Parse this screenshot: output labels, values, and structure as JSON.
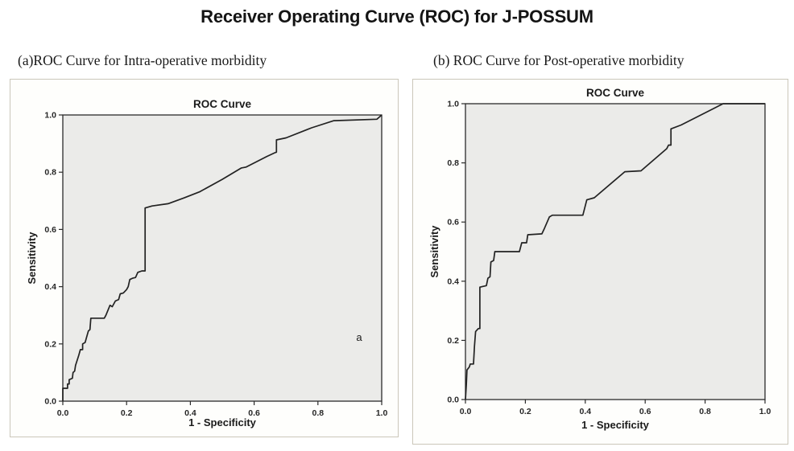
{
  "page": {
    "title": "Receiver Operating Curve (ROC) for J-POSSUM"
  },
  "panels": [
    {
      "subtitle": "(a)ROC Curve for Intra-operative morbidity"
    },
    {
      "subtitle": "(b) ROC Curve for Post-operative morbidity"
    }
  ],
  "colors": {
    "page_bg": "#ffffff",
    "panel_bg": "#fefefc",
    "panel_border": "#cbc7ba",
    "plot_bg": "#ebebe9",
    "frame": "#2b2b2b",
    "curve": "#222222",
    "text": "#1a1a1a"
  },
  "chart_data": [
    {
      "type": "line",
      "title": "ROC Curve",
      "xlabel": "1 - Specificity",
      "ylabel": "Sensitivity",
      "xlim": [
        0,
        1
      ],
      "ylim": [
        0,
        1
      ],
      "xtick_labels": [
        "0.0",
        "0.2",
        "0.4",
        "0.6",
        "0.8",
        "1.0"
      ],
      "ytick_labels": [
        "0.0",
        "0.2",
        "0.4",
        "0.6",
        "0.8",
        "1.0"
      ],
      "grid": false,
      "legend": null,
      "annotation": {
        "text": "a",
        "x": 0.92,
        "y": 0.21
      },
      "series": [
        {
          "name": "ROC curve for intra-operative morbidity",
          "points": [
            [
              0,
              0
            ],
            [
              0,
              0.045
            ],
            [
              0.015,
              0.045
            ],
            [
              0.015,
              0.06
            ],
            [
              0.02,
              0.06
            ],
            [
              0.02,
              0.075
            ],
            [
              0.03,
              0.08
            ],
            [
              0.032,
              0.1
            ],
            [
              0.037,
              0.105
            ],
            [
              0.04,
              0.125
            ],
            [
              0.05,
              0.16
            ],
            [
              0.055,
              0.18
            ],
            [
              0.062,
              0.18
            ],
            [
              0.062,
              0.2
            ],
            [
              0.07,
              0.205
            ],
            [
              0.075,
              0.225
            ],
            [
              0.08,
              0.245
            ],
            [
              0.085,
              0.25
            ],
            [
              0.088,
              0.29
            ],
            [
              0.13,
              0.29
            ],
            [
              0.135,
              0.3
            ],
            [
              0.148,
              0.335
            ],
            [
              0.155,
              0.33
            ],
            [
              0.165,
              0.35
            ],
            [
              0.175,
              0.355
            ],
            [
              0.18,
              0.375
            ],
            [
              0.19,
              0.378
            ],
            [
              0.2,
              0.39
            ],
            [
              0.205,
              0.4
            ],
            [
              0.21,
              0.425
            ],
            [
              0.22,
              0.43
            ],
            [
              0.228,
              0.432
            ],
            [
              0.235,
              0.45
            ],
            [
              0.248,
              0.455
            ],
            [
              0.258,
              0.455
            ],
            [
              0.258,
              0.675
            ],
            [
              0.28,
              0.682
            ],
            [
              0.33,
              0.69
            ],
            [
              0.38,
              0.71
            ],
            [
              0.43,
              0.732
            ],
            [
              0.5,
              0.775
            ],
            [
              0.56,
              0.815
            ],
            [
              0.575,
              0.818
            ],
            [
              0.64,
              0.855
            ],
            [
              0.665,
              0.868
            ],
            [
              0.67,
              0.87
            ],
            [
              0.67,
              0.913
            ],
            [
              0.7,
              0.92
            ],
            [
              0.78,
              0.955
            ],
            [
              0.85,
              0.98
            ],
            [
              0.985,
              0.985
            ],
            [
              1,
              1
            ]
          ]
        }
      ]
    },
    {
      "type": "line",
      "title": "ROC Curve",
      "xlabel": "1 - Specificity",
      "ylabel": "Sensitivity",
      "xlim": [
        0,
        1
      ],
      "ylim": [
        0,
        1
      ],
      "xtick_labels": [
        "0.0",
        "0.2",
        "0.4",
        "0.6",
        "0.8",
        "1.0"
      ],
      "ytick_labels": [
        "0.0",
        "0.2",
        "0.4",
        "0.6",
        "0.8",
        "1.0"
      ],
      "grid": false,
      "legend": null,
      "annotation": null,
      "series": [
        {
          "name": "ROC curve for post-operative morbidity",
          "points": [
            [
              0,
              0
            ],
            [
              0.003,
              0.05
            ],
            [
              0.005,
              0.1
            ],
            [
              0.013,
              0.11
            ],
            [
              0.016,
              0.12
            ],
            [
              0.027,
              0.12
            ],
            [
              0.03,
              0.18
            ],
            [
              0.034,
              0.23
            ],
            [
              0.043,
              0.24
            ],
            [
              0.048,
              0.24
            ],
            [
              0.048,
              0.38
            ],
            [
              0.07,
              0.385
            ],
            [
              0.075,
              0.41
            ],
            [
              0.082,
              0.415
            ],
            [
              0.085,
              0.465
            ],
            [
              0.094,
              0.47
            ],
            [
              0.098,
              0.5
            ],
            [
              0.18,
              0.5
            ],
            [
              0.188,
              0.53
            ],
            [
              0.204,
              0.53
            ],
            [
              0.208,
              0.557
            ],
            [
              0.255,
              0.56
            ],
            [
              0.262,
              0.575
            ],
            [
              0.28,
              0.617
            ],
            [
              0.29,
              0.623
            ],
            [
              0.392,
              0.623
            ],
            [
              0.405,
              0.675
            ],
            [
              0.43,
              0.682
            ],
            [
              0.532,
              0.77
            ],
            [
              0.586,
              0.773
            ],
            [
              0.672,
              0.848
            ],
            [
              0.678,
              0.86
            ],
            [
              0.686,
              0.86
            ],
            [
              0.686,
              0.915
            ],
            [
              0.72,
              0.928
            ],
            [
              0.86,
              1
            ],
            [
              1,
              1
            ]
          ]
        }
      ]
    }
  ]
}
